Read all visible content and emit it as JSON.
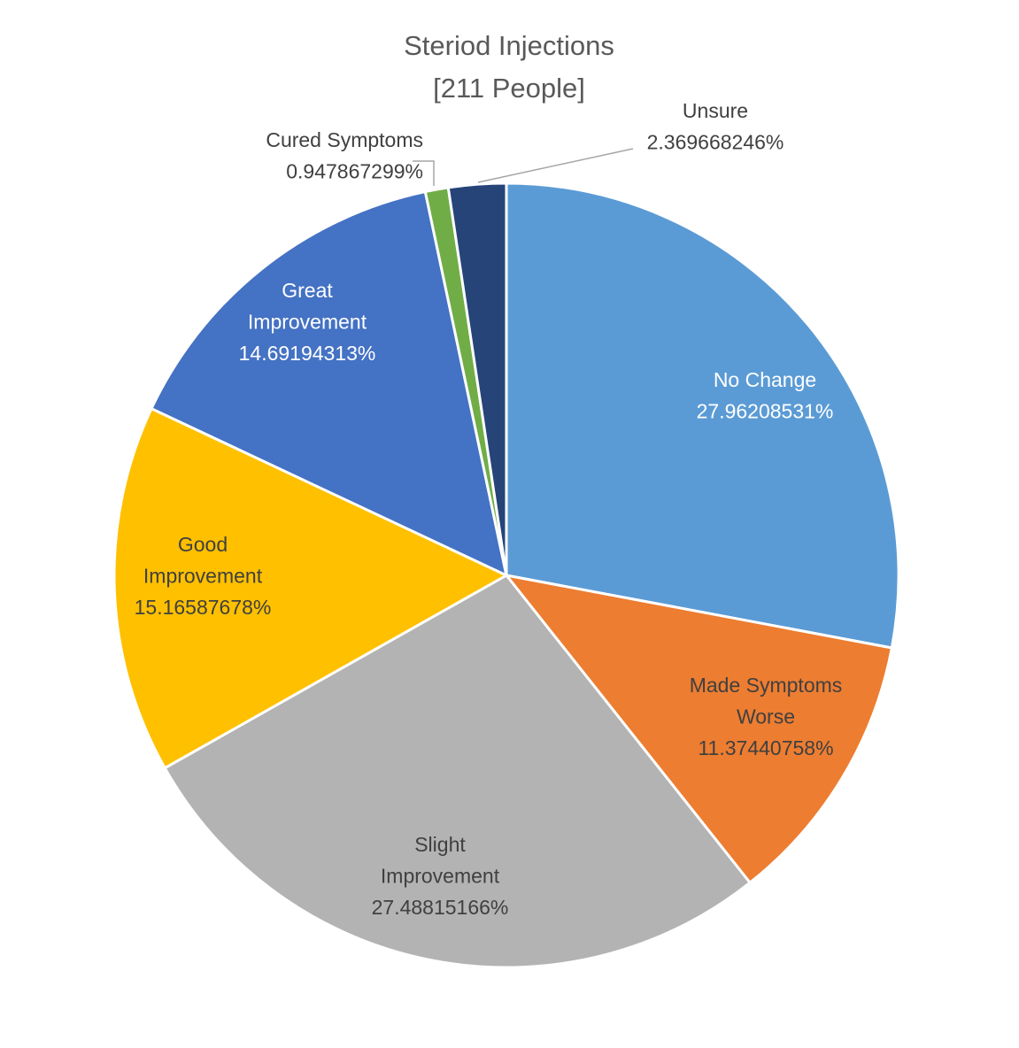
{
  "chart_data": {
    "type": "pie",
    "title": "Steriod Injections",
    "subtitle": "[211 People]",
    "start": "12 o'clock, clockwise",
    "slices": [
      {
        "label": [
          "No Change"
        ],
        "value": 27.96208531,
        "value_text": "27.96208531%",
        "color": "#5B9BD5",
        "text_color": "#ffffff"
      },
      {
        "label": [
          "Made Symptoms",
          "Worse"
        ],
        "value": 11.37440758,
        "value_text": "11.37440758%",
        "color": "#ED7D31",
        "text_color": "#404040"
      },
      {
        "label": [
          "Slight",
          "Improvement"
        ],
        "value": 27.48815166,
        "value_text": "27.48815166%",
        "color": "#B3B3B3",
        "text_color": "#404040"
      },
      {
        "label": [
          "Good",
          "Improvement"
        ],
        "value": 15.16587678,
        "value_text": "15.16587678%",
        "color": "#FFC000",
        "text_color": "#404040"
      },
      {
        "label": [
          "Great",
          "Improvement"
        ],
        "value": 14.69194313,
        "value_text": "14.69194313%",
        "color": "#4472C4",
        "text_color": "#ffffff"
      },
      {
        "label": [
          "Cured Symptoms"
        ],
        "value": 0.947867299,
        "value_text": "0.947867299%",
        "color": "#70AD47",
        "text_color": "#404040"
      },
      {
        "label": [
          "Unsure"
        ],
        "value": 2.369668246,
        "value_text": "2.369668246%",
        "color": "#264478",
        "text_color": "#404040"
      }
    ]
  }
}
